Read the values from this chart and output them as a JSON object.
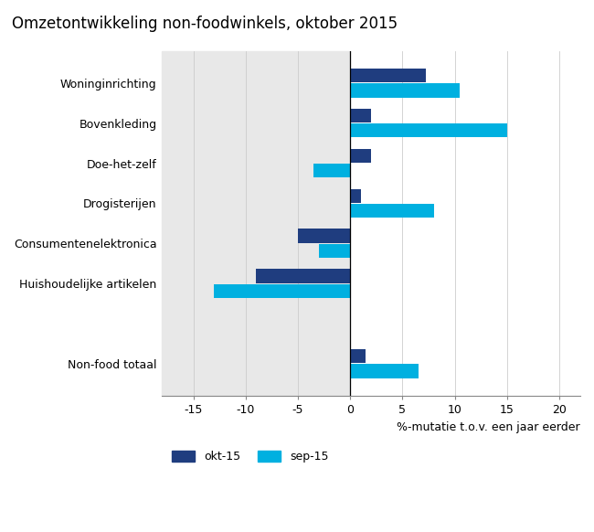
{
  "title": "Omzetontwikkeling non-foodwinkels, oktober 2015",
  "categories": [
    "Non-food totaal",
    "",
    "Huishoudelijke artikelen",
    "Consumentenelektronica",
    "Drogisterijen",
    "Doe-het-zelf",
    "Bovenkleding",
    "Woninginrichting"
  ],
  "okt15": [
    1.5,
    null,
    -9.0,
    -5.0,
    1.0,
    2.0,
    2.0,
    7.2
  ],
  "sep15": [
    6.5,
    null,
    -13.0,
    -3.0,
    8.0,
    -3.5,
    15.0,
    10.5
  ],
  "color_okt": "#1f3d7f",
  "color_sep": "#00b0e0",
  "xlabel": "%-mutatie t.o.v. een jaar eerder",
  "xlim": [
    -18,
    22
  ],
  "xticks": [
    -15,
    -10,
    -5,
    0,
    5,
    10,
    15,
    20
  ],
  "legend_okt": "okt-15",
  "legend_sep": "sep-15",
  "bg_color": "#e8e8e8",
  "title_fontsize": 12,
  "label_fontsize": 9,
  "xlabel_fontsize": 9,
  "bar_height": 0.35,
  "bar_gap": 0.02
}
